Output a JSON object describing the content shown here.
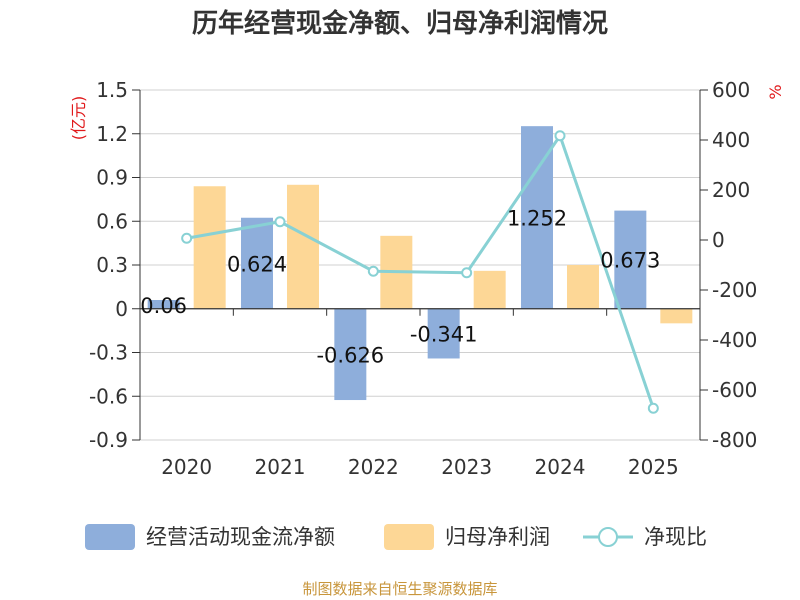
{
  "chart_data": {
    "type": "bar",
    "title": "历年经营现金净额、归母净利润情况",
    "categories": [
      "2020",
      "2021",
      "2022",
      "2023",
      "2024",
      "2025"
    ],
    "y_left": {
      "unit": "(亿元)",
      "min": -0.9,
      "max": 1.5,
      "ticks": [
        "1.5",
        "1.2",
        "0.9",
        "0.6",
        "0.3",
        "0",
        "-0.3",
        "-0.6",
        "-0.9"
      ]
    },
    "y_right": {
      "unit": "%",
      "min": -800,
      "max": 600,
      "ticks": [
        "600",
        "400",
        "200",
        "0",
        "-200",
        "-400",
        "-600",
        "-800"
      ]
    },
    "series": [
      {
        "name": "经营活动现金流净额",
        "kind": "bar",
        "axis": "left",
        "color": "#8eaedb",
        "values": [
          0.06,
          0.624,
          -0.626,
          -0.341,
          1.252,
          0.673
        ],
        "labels": [
          "0.06",
          "0.624",
          "-0.626",
          "-0.341",
          "1.252",
          "0.673"
        ]
      },
      {
        "name": "归母净利润",
        "kind": "bar",
        "axis": "left",
        "color": "#fdd796",
        "values": [
          0.84,
          0.85,
          0.5,
          0.26,
          0.3,
          -0.1
        ]
      },
      {
        "name": "净现比",
        "kind": "line",
        "axis": "right",
        "color": "#88d1d4",
        "values": [
          7,
          73,
          -125,
          -131,
          417,
          -673
        ]
      }
    ],
    "grid": true,
    "legend": "bottom"
  },
  "footer": {
    "source": "制图数据来自恒生聚源数据库"
  }
}
